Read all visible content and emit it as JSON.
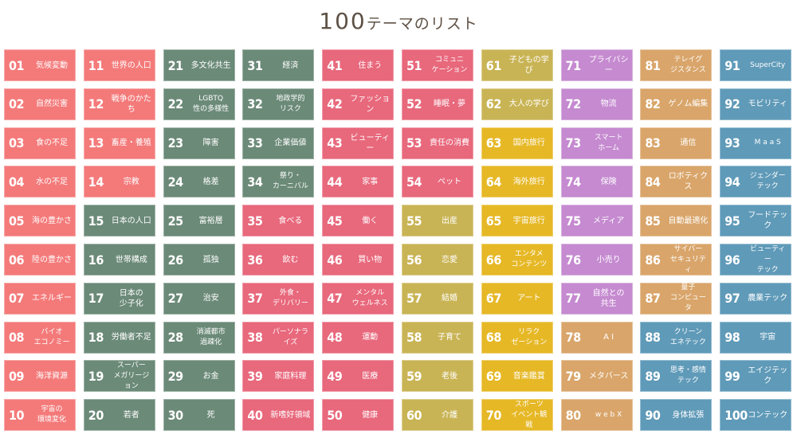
{
  "header": {
    "title_number": "100",
    "title_text": "テーマのリスト"
  },
  "colors": {
    "coral": "#f47a7a",
    "sage": "#6b8a78",
    "rose": "#e8687c",
    "olive": "#c9b455",
    "yellow": "#e6b826",
    "purple": "#c58ad0",
    "tan": "#d9a56a",
    "blue": "#5f9ab8"
  },
  "themes": [
    {
      "n": "01",
      "label": "気候変動",
      "color": "coral"
    },
    {
      "n": "02",
      "label": "自然災害",
      "color": "coral"
    },
    {
      "n": "03",
      "label": "食の不足",
      "color": "coral"
    },
    {
      "n": "04",
      "label": "水の不足",
      "color": "coral"
    },
    {
      "n": "05",
      "label": "海の豊かさ",
      "color": "coral"
    },
    {
      "n": "06",
      "label": "陸の豊かさ",
      "color": "coral"
    },
    {
      "n": "07",
      "label": "エネルギー",
      "color": "coral"
    },
    {
      "n": "08",
      "label": "バイオ\nエコノミー",
      "color": "coral"
    },
    {
      "n": "09",
      "label": "海洋資源",
      "color": "coral"
    },
    {
      "n": "10",
      "label": "宇宙の\n環境変化",
      "color": "coral"
    },
    {
      "n": "11",
      "label": "世界の人口",
      "color": "coral"
    },
    {
      "n": "12",
      "label": "戦争のかたち",
      "color": "coral"
    },
    {
      "n": "13",
      "label": "畜産・養殖",
      "color": "coral"
    },
    {
      "n": "14",
      "label": "宗教",
      "color": "coral"
    },
    {
      "n": "15",
      "label": "日本の人口",
      "color": "sage"
    },
    {
      "n": "16",
      "label": "世帯構成",
      "color": "sage"
    },
    {
      "n": "17",
      "label": "日本の\n少子化",
      "color": "sage"
    },
    {
      "n": "18",
      "label": "労働者不足",
      "color": "sage"
    },
    {
      "n": "19",
      "label": "スーパー\nメガリージョン",
      "color": "sage"
    },
    {
      "n": "20",
      "label": "若者",
      "color": "sage"
    },
    {
      "n": "21",
      "label": "多文化共生",
      "color": "sage"
    },
    {
      "n": "22",
      "label": "LGBTQ\n性の多様性",
      "color": "sage"
    },
    {
      "n": "23",
      "label": "障害",
      "color": "sage"
    },
    {
      "n": "24",
      "label": "格差",
      "color": "sage"
    },
    {
      "n": "25",
      "label": "富裕層",
      "color": "sage"
    },
    {
      "n": "26",
      "label": "孤独",
      "color": "sage"
    },
    {
      "n": "27",
      "label": "治安",
      "color": "sage"
    },
    {
      "n": "28",
      "label": "消滅都市\n過疎化",
      "color": "sage"
    },
    {
      "n": "29",
      "label": "お金",
      "color": "sage"
    },
    {
      "n": "30",
      "label": "死",
      "color": "sage"
    },
    {
      "n": "31",
      "label": "経済",
      "color": "sage"
    },
    {
      "n": "32",
      "label": "地政学的\nリスク",
      "color": "sage"
    },
    {
      "n": "33",
      "label": "企業価値",
      "color": "sage"
    },
    {
      "n": "34",
      "label": "祭り・\nカーニバル",
      "color": "sage"
    },
    {
      "n": "35",
      "label": "食べる",
      "color": "rose"
    },
    {
      "n": "36",
      "label": "飲む",
      "color": "rose"
    },
    {
      "n": "37",
      "label": "外食・\nデリバリー",
      "color": "rose"
    },
    {
      "n": "38",
      "label": "パーソナライズ",
      "color": "rose"
    },
    {
      "n": "39",
      "label": "家庭料理",
      "color": "rose"
    },
    {
      "n": "40",
      "label": "新嗜好領域",
      "color": "rose"
    },
    {
      "n": "41",
      "label": "住まう",
      "color": "rose"
    },
    {
      "n": "42",
      "label": "ファッション",
      "color": "rose"
    },
    {
      "n": "43",
      "label": "ビューティー",
      "color": "rose"
    },
    {
      "n": "44",
      "label": "家事",
      "color": "rose"
    },
    {
      "n": "45",
      "label": "働く",
      "color": "rose"
    },
    {
      "n": "46",
      "label": "買い物",
      "color": "rose"
    },
    {
      "n": "47",
      "label": "メンタル\nウェルネス",
      "color": "rose"
    },
    {
      "n": "48",
      "label": "運動",
      "color": "rose"
    },
    {
      "n": "49",
      "label": "医療",
      "color": "rose"
    },
    {
      "n": "50",
      "label": "健康",
      "color": "rose"
    },
    {
      "n": "51",
      "label": "コミュニ\nケーション",
      "color": "rose"
    },
    {
      "n": "52",
      "label": "睡眠・夢",
      "color": "rose"
    },
    {
      "n": "53",
      "label": "責任の消費",
      "color": "rose"
    },
    {
      "n": "54",
      "label": "ペット",
      "color": "rose"
    },
    {
      "n": "55",
      "label": "出産",
      "color": "olive"
    },
    {
      "n": "56",
      "label": "恋愛",
      "color": "olive"
    },
    {
      "n": "57",
      "label": "結婚",
      "color": "olive"
    },
    {
      "n": "58",
      "label": "子育て",
      "color": "olive"
    },
    {
      "n": "59",
      "label": "老後",
      "color": "olive"
    },
    {
      "n": "60",
      "label": "介護",
      "color": "olive"
    },
    {
      "n": "61",
      "label": "子どもの学び",
      "color": "olive"
    },
    {
      "n": "62",
      "label": "大人の学び",
      "color": "olive"
    },
    {
      "n": "63",
      "label": "国内旅行",
      "color": "yellow"
    },
    {
      "n": "64",
      "label": "海外旅行",
      "color": "yellow"
    },
    {
      "n": "65",
      "label": "宇宙旅行",
      "color": "yellow"
    },
    {
      "n": "66",
      "label": "エンタメ\nコンテンツ",
      "color": "yellow"
    },
    {
      "n": "67",
      "label": "アート",
      "color": "yellow"
    },
    {
      "n": "68",
      "label": "リラク\nゼーション",
      "color": "yellow"
    },
    {
      "n": "69",
      "label": "音楽鑑賞",
      "color": "yellow"
    },
    {
      "n": "70",
      "label": "スポーツ\nイベント観戦",
      "color": "yellow"
    },
    {
      "n": "71",
      "label": "プライバシー",
      "color": "purple"
    },
    {
      "n": "72",
      "label": "物流",
      "color": "purple"
    },
    {
      "n": "73",
      "label": "スマート\nホーム",
      "color": "purple"
    },
    {
      "n": "74",
      "label": "保険",
      "color": "purple"
    },
    {
      "n": "75",
      "label": "メディア",
      "color": "purple"
    },
    {
      "n": "76",
      "label": "小売り",
      "color": "purple"
    },
    {
      "n": "77",
      "label": "自然との\n共生",
      "color": "purple"
    },
    {
      "n": "78",
      "label": "A I",
      "color": "tan"
    },
    {
      "n": "79",
      "label": "メタバース",
      "color": "tan"
    },
    {
      "n": "80",
      "label": "w e b X",
      "color": "tan"
    },
    {
      "n": "81",
      "label": "テレイグ\nジスタンス",
      "color": "tan"
    },
    {
      "n": "82",
      "label": "ゲノム編集",
      "color": "tan"
    },
    {
      "n": "83",
      "label": "通信",
      "color": "tan"
    },
    {
      "n": "84",
      "label": "ロボティクス",
      "color": "tan"
    },
    {
      "n": "85",
      "label": "自動最適化",
      "color": "tan"
    },
    {
      "n": "86",
      "label": "サイバー\nセキュリティ",
      "color": "tan"
    },
    {
      "n": "87",
      "label": "量子\nコンピュータ",
      "color": "tan"
    },
    {
      "n": "88",
      "label": "クリーン\nエネテック",
      "color": "blue"
    },
    {
      "n": "89",
      "label": "思考・感情\nテック",
      "color": "blue"
    },
    {
      "n": "90",
      "label": "身体拡張",
      "color": "blue"
    },
    {
      "n": "91",
      "label": "SuperCity",
      "color": "blue"
    },
    {
      "n": "92",
      "label": "モビリティ",
      "color": "blue"
    },
    {
      "n": "93",
      "label": "M a a S",
      "color": "blue"
    },
    {
      "n": "94",
      "label": "ジェンダー\nテック",
      "color": "blue"
    },
    {
      "n": "95",
      "label": "フードテック",
      "color": "blue"
    },
    {
      "n": "96",
      "label": "ビューティー\nテック",
      "color": "blue"
    },
    {
      "n": "97",
      "label": "農業テック",
      "color": "blue"
    },
    {
      "n": "98",
      "label": "宇宙",
      "color": "blue"
    },
    {
      "n": "99",
      "label": "エイジテック",
      "color": "blue"
    },
    {
      "n": "100",
      "label": "コンテック",
      "color": "blue"
    }
  ]
}
